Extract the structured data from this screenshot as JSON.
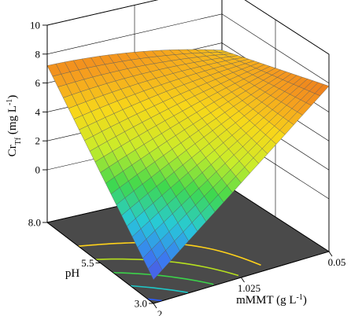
{
  "chart_data": {
    "type": "surface3d",
    "z_axis": {
      "label_main": "Cr",
      "label_sub": "Tf",
      "label_units": " (mg L",
      "label_exp": "-1",
      "label_close": ")",
      "ticks": [
        0,
        2,
        4,
        6,
        8,
        10
      ],
      "tick_labels": [
        "0",
        "2",
        "4",
        "6",
        "8",
        "10"
      ],
      "range": [
        0,
        10
      ]
    },
    "x_axis": {
      "label_main": "mMMT (g L",
      "label_exp": "-1",
      "label_close": ")",
      "ticks": [
        2,
        1.025,
        0.05
      ],
      "tick_labels": [
        "2",
        "1.025",
        "0.05"
      ],
      "range": [
        2,
        0.05
      ]
    },
    "y_axis": {
      "label": "pH",
      "ticks": [
        3.0,
        5.5,
        8.0
      ],
      "tick_labels": [
        "3.0",
        "5.5",
        "8.0"
      ],
      "range": [
        3.0,
        8.0
      ]
    },
    "surface": {
      "description_free": true,
      "corner_values": {
        "pH8_m0.05": 5.5,
        "pH8_m2": 7.2,
        "pH3_m0.05": 7.8,
        "pH3_m2": -2.0
      },
      "grid_divisions": 20
    },
    "floor_contours": [
      {
        "level": 4.5,
        "color": "#ffd21a"
      },
      {
        "level": 3.0,
        "color": "#b6e01e"
      },
      {
        "level": 1.5,
        "color": "#3cd24a"
      },
      {
        "level": 0.0,
        "color": "#1ec8c8"
      },
      {
        "level": -1.5,
        "color": "#2a5cff"
      }
    ],
    "colormap": [
      "#5b3fd6",
      "#3a7cf0",
      "#27c9d9",
      "#3fd84e",
      "#c9ec2a",
      "#f7d81a",
      "#f59a1e",
      "#e8701c"
    ]
  }
}
